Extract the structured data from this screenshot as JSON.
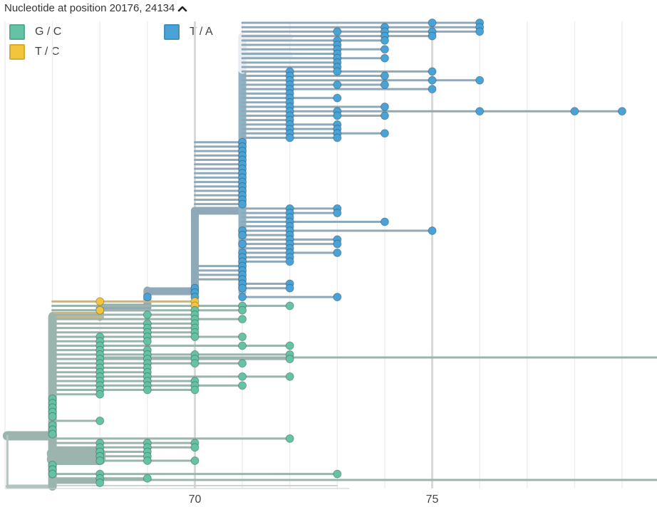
{
  "header": {
    "title": "Nucleotide at position 20176, 24134",
    "toggle_icon": "chevron-up-icon"
  },
  "legend": [
    {
      "label": "G / C",
      "color": "#66c2a5"
    },
    {
      "label": "T / C",
      "color": "#f2c53d"
    },
    {
      "label": "T / A",
      "color": "#4aa3d6"
    }
  ],
  "chart_data": {
    "type": "phylogenetic-tree",
    "title": "Nucleotide at position 20176, 24134",
    "xlabel": "",
    "ylabel": "",
    "xlim": [
      66.0,
      79.45
    ],
    "ticks": [
      70,
      75
    ],
    "minor_ticks": [
      66,
      67,
      68,
      69,
      71,
      72,
      73,
      74,
      76,
      77,
      78,
      79
    ],
    "colors": {
      "G / C": "#66c2a5",
      "T / C": "#f2c53d",
      "T / A": "#4aa3d6",
      "branch_T_A": "#8fa9b8",
      "branch_G_C": "#9bb5ae",
      "branch_T_C": "#c7b68a",
      "root": "#b4c4c2"
    },
    "tips": {
      "T / A": [
        [
          75,
          0
        ],
        [
          76,
          0
        ],
        [
          74,
          1
        ],
        [
          76,
          1
        ],
        [
          73,
          2
        ],
        [
          74,
          2
        ],
        [
          75,
          2
        ],
        [
          76,
          2
        ],
        [
          74,
          3
        ],
        [
          75,
          3
        ],
        [
          73,
          4
        ],
        [
          74,
          4
        ],
        [
          73,
          5
        ],
        [
          73,
          6
        ],
        [
          74,
          6
        ],
        [
          73,
          7
        ],
        [
          73,
          8
        ],
        [
          74,
          8
        ],
        [
          73,
          9
        ],
        [
          73,
          10
        ],
        [
          72,
          11
        ],
        [
          73,
          11
        ],
        [
          75,
          11
        ],
        [
          72,
          12
        ],
        [
          74,
          12
        ],
        [
          72,
          13
        ],
        [
          75,
          13
        ],
        [
          76,
          13
        ],
        [
          72,
          14
        ],
        [
          73,
          14
        ],
        [
          74,
          14
        ],
        [
          72,
          15
        ],
        [
          75,
          15
        ],
        [
          72,
          16
        ],
        [
          72,
          17
        ],
        [
          73,
          17
        ],
        [
          72,
          18
        ],
        [
          72,
          19
        ],
        [
          74,
          19
        ],
        [
          72,
          20
        ],
        [
          73,
          20
        ],
        [
          76,
          20
        ],
        [
          78,
          20
        ],
        [
          79,
          20
        ],
        [
          72,
          21
        ],
        [
          73,
          21
        ],
        [
          74,
          21
        ],
        [
          72,
          22
        ],
        [
          72,
          23
        ],
        [
          73,
          23
        ],
        [
          72,
          24
        ],
        [
          73,
          24
        ],
        [
          72,
          25
        ],
        [
          73,
          25
        ],
        [
          74,
          25
        ],
        [
          72,
          26
        ],
        [
          73,
          26
        ],
        [
          71,
          27
        ],
        [
          71,
          28
        ],
        [
          71,
          29
        ],
        [
          71,
          30
        ],
        [
          71,
          31
        ],
        [
          71,
          32
        ],
        [
          71,
          33
        ],
        [
          71,
          34
        ],
        [
          71,
          35
        ],
        [
          71,
          36
        ],
        [
          71,
          37
        ],
        [
          71,
          38
        ],
        [
          71,
          39
        ],
        [
          71,
          40
        ],
        [
          71,
          41
        ],
        [
          72,
          42
        ],
        [
          73,
          42
        ],
        [
          72,
          43
        ],
        [
          73,
          43
        ],
        [
          72,
          44
        ],
        [
          72,
          45
        ],
        [
          74,
          45
        ],
        [
          72,
          46
        ],
        [
          71,
          47
        ],
        [
          72,
          47
        ],
        [
          75,
          47
        ],
        [
          71,
          48
        ],
        [
          72,
          48
        ],
        [
          72,
          49
        ],
        [
          73,
          49
        ],
        [
          71,
          50
        ],
        [
          72,
          50
        ],
        [
          73,
          50
        ],
        [
          72,
          51
        ],
        [
          71,
          52
        ],
        [
          72,
          52
        ],
        [
          73,
          52
        ],
        [
          71,
          53
        ],
        [
          72,
          53
        ],
        [
          71,
          54
        ],
        [
          72,
          54
        ],
        [
          71,
          55
        ],
        [
          71,
          56
        ],
        [
          71,
          57
        ],
        [
          71,
          58
        ],
        [
          71,
          59
        ],
        [
          72,
          59
        ],
        [
          70,
          60
        ],
        [
          71,
          60
        ],
        [
          72,
          60
        ],
        [
          70,
          61
        ],
        [
          69,
          62
        ],
        [
          70,
          62
        ],
        [
          71,
          62
        ],
        [
          73,
          62
        ]
      ],
      "T / C": [
        [
          68,
          63
        ],
        [
          70,
          63
        ],
        [
          70,
          64
        ],
        [
          68,
          65
        ]
      ],
      "G / C": [
        [
          71,
          64
        ],
        [
          72,
          64
        ],
        [
          70,
          65
        ],
        [
          71,
          65
        ],
        [
          69,
          66
        ],
        [
          70,
          66
        ],
        [
          70,
          67
        ],
        [
          71,
          67
        ],
        [
          69,
          68
        ],
        [
          70,
          68
        ],
        [
          69,
          69
        ],
        [
          70,
          69
        ],
        [
          69,
          70
        ],
        [
          70,
          70
        ],
        [
          68,
          71
        ],
        [
          69,
          71
        ],
        [
          70,
          71
        ],
        [
          71,
          71
        ],
        [
          68,
          72
        ],
        [
          69,
          72
        ],
        [
          68,
          73
        ],
        [
          71,
          73
        ],
        [
          72,
          73
        ],
        [
          68,
          74
        ],
        [
          69,
          74
        ],
        [
          68,
          75
        ],
        [
          69,
          75
        ],
        [
          70,
          75
        ],
        [
          72,
          75
        ],
        [
          68,
          76
        ],
        [
          69,
          76
        ],
        [
          70,
          76
        ],
        [
          72,
          76
        ],
        [
          68,
          77
        ],
        [
          69,
          77
        ],
        [
          70,
          77
        ],
        [
          71,
          77
        ],
        [
          68,
          78
        ],
        [
          69,
          78
        ],
        [
          68,
          79
        ],
        [
          69,
          79
        ],
        [
          68,
          80
        ],
        [
          69,
          80
        ],
        [
          71,
          80
        ],
        [
          72,
          80
        ],
        [
          68,
          81
        ],
        [
          69,
          81
        ],
        [
          70,
          81
        ],
        [
          68,
          82
        ],
        [
          69,
          82
        ],
        [
          70,
          82
        ],
        [
          71,
          82
        ],
        [
          68,
          83
        ],
        [
          69,
          83
        ],
        [
          70,
          83
        ],
        [
          68,
          84
        ],
        [
          67,
          85
        ],
        [
          67,
          86
        ],
        [
          67,
          87
        ],
        [
          67,
          88
        ],
        [
          67,
          89
        ],
        [
          68,
          90
        ],
        [
          67,
          91
        ],
        [
          67,
          92
        ],
        [
          67,
          93
        ],
        [
          72,
          94
        ],
        [
          68,
          95
        ],
        [
          69,
          95
        ],
        [
          70,
          95
        ],
        [
          68,
          96
        ],
        [
          69,
          96
        ],
        [
          70,
          96
        ],
        [
          68,
          97
        ],
        [
          69,
          97
        ],
        [
          68,
          98
        ],
        [
          69,
          98
        ],
        [
          68,
          99
        ],
        [
          69,
          99
        ],
        [
          70,
          99
        ],
        [
          67,
          100
        ],
        [
          67,
          101
        ],
        [
          67,
          102
        ],
        [
          68,
          102
        ],
        [
          73,
          102
        ],
        [
          68,
          103
        ],
        [
          69,
          103
        ],
        [
          68,
          104
        ]
      ]
    }
  }
}
